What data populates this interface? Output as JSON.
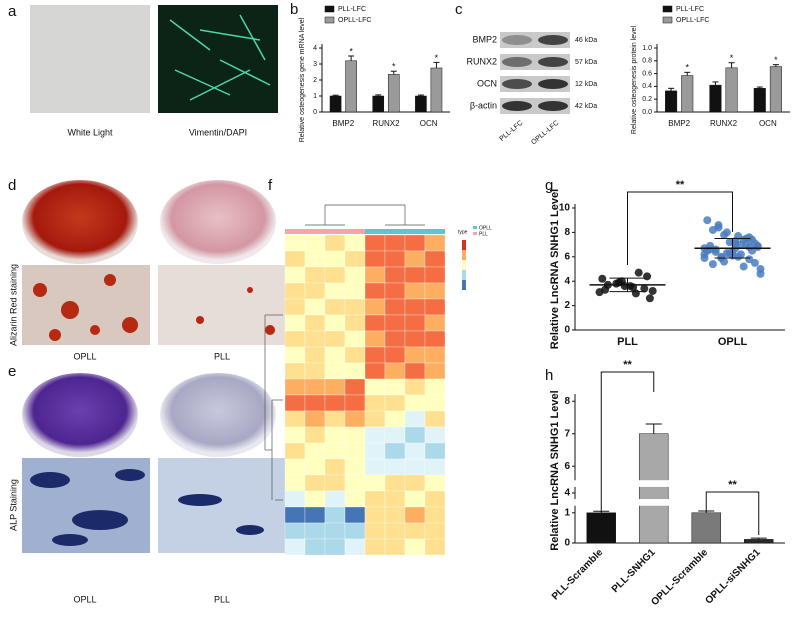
{
  "panels": {
    "a": {
      "label": "a",
      "captions": [
        "White Light",
        "Vimentin/DAPI"
      ]
    },
    "b": {
      "label": "b"
    },
    "c": {
      "label": "c",
      "blot": {
        "proteins": [
          "BMP2",
          "RUNX2",
          "OCN",
          "β-actin"
        ],
        "sizes": [
          "46 kDa",
          "57 kDa",
          "12 kDa",
          "42 kDa"
        ],
        "lanes": [
          "PLL-LFC",
          "OPLL-LFC"
        ]
      }
    },
    "d": {
      "label": "d",
      "stain": "Alizarin Red staining",
      "captions": [
        "OPLL",
        "PLL"
      ]
    },
    "e": {
      "label": "e",
      "stain": "ALP Staining",
      "captions": [
        "OPLL",
        "PLL"
      ]
    },
    "f": {
      "label": "f",
      "legend_title": "type",
      "legend": [
        "OPLL",
        "PLL"
      ]
    },
    "g": {
      "label": "g"
    },
    "h": {
      "label": "h"
    }
  },
  "chart_data": [
    {
      "type": "bar",
      "ylabel": "Relative osteogenesis gene mRNA level",
      "categories": [
        "BMP2",
        "RUNX2",
        "OCN"
      ],
      "series": [
        {
          "name": "PLL-LFC",
          "color": "#111111",
          "values": [
            1,
            1,
            1
          ],
          "errors": [
            0.05,
            0.07,
            0.06
          ]
        },
        {
          "name": "OPLL-LFC",
          "color": "#9a9a9a",
          "values": [
            3.2,
            2.35,
            2.75
          ],
          "errors": [
            0.3,
            0.2,
            0.35
          ]
        }
      ],
      "ylim": [
        0,
        4
      ],
      "yticks": [
        0,
        1,
        2,
        3,
        4
      ],
      "annotations": [
        "*",
        "*",
        "*"
      ],
      "legend": "upper left"
    },
    {
      "type": "bar",
      "ylabel": "Relative osteogenesis protein level",
      "categories": [
        "BMP2",
        "RUNX2",
        "OCN"
      ],
      "series": [
        {
          "name": "PLL-LFC",
          "color": "#111111",
          "values": [
            0.33,
            0.42,
            0.37
          ],
          "errors": [
            0.04,
            0.05,
            0.02
          ]
        },
        {
          "name": "OPLL-LFC",
          "color": "#9a9a9a",
          "values": [
            0.57,
            0.69,
            0.71
          ],
          "errors": [
            0.05,
            0.08,
            0.03
          ]
        }
      ],
      "ylim": [
        0,
        1
      ],
      "yticks": [
        {
          "value": 0,
          "label": "0.0"
        },
        {
          "value": 0.2,
          "label": "0.2"
        },
        {
          "value": 0.4,
          "label": "0.4"
        },
        {
          "value": 0.6,
          "label": "0.6"
        },
        {
          "value": 0.8,
          "label": "0.8"
        },
        {
          "value": 1,
          "label": "1.0"
        }
      ],
      "annotations": [
        "*",
        "*",
        "*"
      ],
      "legend": "upper left"
    },
    {
      "type": "strip",
      "ylabel": "Relative LncRNA SNHG1 Level",
      "categories": [
        "PLL",
        "OPLL"
      ],
      "values": [
        [
          3.1,
          3.4,
          3.6,
          3.8,
          4.2,
          4.4,
          3.5,
          3.9,
          3.3,
          2.6,
          3.0,
          4.0,
          3.7,
          3.2,
          4.7,
          3.6
        ],
        [
          6.2,
          6.8,
          7.1,
          5.9,
          6.5,
          7.4,
          6.0,
          7.8,
          6.6,
          5.5,
          7.0,
          6.3,
          8.2,
          6.9,
          5.2,
          7.2,
          6.4,
          4.6,
          7.5,
          6.1,
          8.6,
          6.7,
          5.8,
          7.3,
          6.0,
          9.0,
          6.5,
          7.7,
          5.6,
          6.9,
          7.1,
          6.2,
          8.0,
          5.4,
          6.8,
          7.4,
          6.3,
          6.6,
          5.0,
          7.0,
          6.4,
          8.4,
          5.9,
          7.6,
          6.7
        ]
      ],
      "means": [
        3.7,
        6.7
      ],
      "sds": [
        0.55,
        0.8
      ],
      "colors": [
        "#111111",
        "#4a7dc0"
      ],
      "ylim": [
        0,
        10
      ],
      "yticks": [
        0,
        2,
        4,
        6,
        8,
        10
      ],
      "annotations": [
        "**"
      ]
    },
    {
      "type": "bar",
      "ylabel": "Relative LncRNA SNHG1 Level",
      "categories": [
        "PLL-Scramble",
        "PLL-SNHG1",
        "OPLL-Scramble",
        "OPLL-siSNHG1"
      ],
      "values": [
        1,
        7,
        1,
        0.12
      ],
      "errors": [
        0.05,
        0.3,
        0.06,
        0.04
      ],
      "colors": [
        "#111111",
        "#a8a8a8",
        "#7a7a7a",
        "#2a2a2a"
      ],
      "ysegments": [
        [
          0,
          1.2
        ],
        [
          3.8,
          4.2
        ],
        [
          5.6,
          8.1
        ]
      ],
      "yticks": [
        0,
        1,
        4,
        6,
        7,
        8
      ],
      "annotations": [
        "**",
        "**"
      ]
    }
  ]
}
